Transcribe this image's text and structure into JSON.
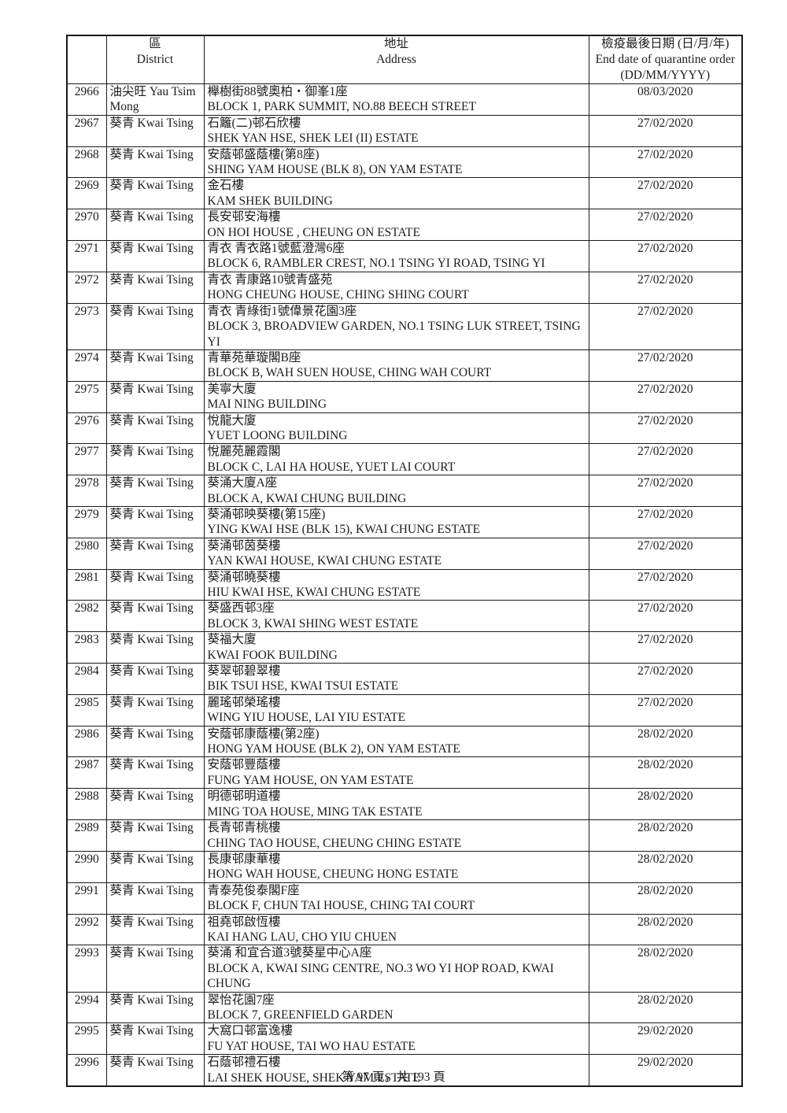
{
  "table": {
    "header": {
      "id_label": "",
      "district_zh": "區",
      "district_en": "District",
      "address_zh": "地址",
      "address_en": "Address",
      "date_zh": "檢疫最後日期 (日/月/年)",
      "date_en": "End date of quarantine order",
      "date_format": "(DD/MM/YYYY)"
    },
    "rows": [
      {
        "id": "2966",
        "district": "油尖旺 Yau Tsim Mong",
        "address_zh": "櫸樹街88號奧柏・御峯1座",
        "address_en": "BLOCK 1, PARK SUMMIT, NO.88 BEECH STREET",
        "date": "08/03/2020"
      },
      {
        "id": "2967",
        "district": "葵青 Kwai Tsing",
        "address_zh": "石籬(二)邨石欣樓",
        "address_en": "SHEK YAN HSE, SHEK LEI (II) ESTATE",
        "date": "27/02/2020"
      },
      {
        "id": "2968",
        "district": "葵青 Kwai Tsing",
        "address_zh": "安蔭邨盛蔭樓(第8座)",
        "address_en": "SHING YAM HOUSE (BLK 8), ON YAM ESTATE",
        "date": "27/02/2020"
      },
      {
        "id": "2969",
        "district": "葵青 Kwai Tsing",
        "address_zh": "金石樓",
        "address_en": "KAM SHEK BUILDING",
        "date": "27/02/2020"
      },
      {
        "id": "2970",
        "district": "葵青 Kwai Tsing",
        "address_zh": "長安邨安海樓",
        "address_en": "ON HOI HOUSE , CHEUNG ON ESTATE",
        "date": "27/02/2020"
      },
      {
        "id": "2971",
        "district": "葵青 Kwai Tsing",
        "address_zh": "青衣 青衣路1號藍澄灣6座",
        "address_en": "BLOCK 6, RAMBLER CREST, NO.1 TSING YI ROAD, TSING YI",
        "date": "27/02/2020"
      },
      {
        "id": "2972",
        "district": "葵青 Kwai Tsing",
        "address_zh": "青衣 青康路10號青盛苑",
        "address_en": "HONG CHEUNG HOUSE, CHING SHING COURT",
        "date": "27/02/2020"
      },
      {
        "id": "2973",
        "district": "葵青 Kwai Tsing",
        "address_zh": "青衣 青綠街1號偉景花園3座",
        "address_en": "BLOCK 3, BROADVIEW GARDEN, NO.1 TSING LUK STREET, TSING YI",
        "date": "27/02/2020"
      },
      {
        "id": "2974",
        "district": "葵青 Kwai Tsing",
        "address_zh": "青華苑華璇閣B座",
        "address_en": "BLOCK B, WAH SUEN HOUSE, CHING WAH COURT",
        "date": "27/02/2020"
      },
      {
        "id": "2975",
        "district": "葵青 Kwai Tsing",
        "address_zh": "美寧大廈",
        "address_en": "MAI NING BUILDING",
        "date": "27/02/2020"
      },
      {
        "id": "2976",
        "district": "葵青 Kwai Tsing",
        "address_zh": "悅龍大廈",
        "address_en": "YUET LOONG BUILDING",
        "date": "27/02/2020"
      },
      {
        "id": "2977",
        "district": "葵青 Kwai Tsing",
        "address_zh": "悅麗苑麗霞閣",
        "address_en": "BLOCK C, LAI HA HOUSE, YUET LAI COURT",
        "date": "27/02/2020"
      },
      {
        "id": "2978",
        "district": "葵青 Kwai Tsing",
        "address_zh": "葵涌大廈A座",
        "address_en": "BLOCK A, KWAI CHUNG BUILDING",
        "date": "27/02/2020"
      },
      {
        "id": "2979",
        "district": "葵青 Kwai Tsing",
        "address_zh": "葵涌邨映葵樓(第15座)",
        "address_en": "YING KWAI HSE (BLK 15), KWAI CHUNG ESTATE",
        "date": "27/02/2020"
      },
      {
        "id": "2980",
        "district": "葵青 Kwai Tsing",
        "address_zh": "葵涌邨茵葵樓",
        "address_en": "YAN KWAI HOUSE, KWAI CHUNG ESTATE",
        "date": "27/02/2020"
      },
      {
        "id": "2981",
        "district": "葵青 Kwai Tsing",
        "address_zh": "葵涌邨曉葵樓",
        "address_en": "HIU KWAI HSE, KWAI CHUNG ESTATE",
        "date": "27/02/2020"
      },
      {
        "id": "2982",
        "district": "葵青 Kwai Tsing",
        "address_zh": "葵盛西邨3座",
        "address_en": "BLOCK 3, KWAI SHING WEST ESTATE",
        "date": "27/02/2020"
      },
      {
        "id": "2983",
        "district": "葵青 Kwai Tsing",
        "address_zh": "葵福大廈",
        "address_en": "KWAI FOOK BUILDING",
        "date": "27/02/2020"
      },
      {
        "id": "2984",
        "district": "葵青 Kwai Tsing",
        "address_zh": "葵翠邨碧翠樓",
        "address_en": "BIK TSUI HSE, KWAI TSUI ESTATE",
        "date": "27/02/2020"
      },
      {
        "id": "2985",
        "district": "葵青 Kwai Tsing",
        "address_zh": "麗瑤邨榮瑤樓",
        "address_en": "WING YIU HOUSE, LAI YIU ESTATE",
        "date": "27/02/2020"
      },
      {
        "id": "2986",
        "district": "葵青 Kwai Tsing",
        "address_zh": "安蔭邨康蔭樓(第2座)",
        "address_en": "HONG YAM HOUSE (BLK 2), ON YAM ESTATE",
        "date": "28/02/2020"
      },
      {
        "id": "2987",
        "district": "葵青 Kwai Tsing",
        "address_zh": "安蔭邨豐蔭樓",
        "address_en": "FUNG YAM HOUSE, ON YAM ESTATE",
        "date": "28/02/2020"
      },
      {
        "id": "2988",
        "district": "葵青 Kwai Tsing",
        "address_zh": "明德邨明道樓",
        "address_en": "MING TOA HOUSE, MING TAK ESTATE",
        "date": "28/02/2020"
      },
      {
        "id": "2989",
        "district": "葵青 Kwai Tsing",
        "address_zh": "長青邨青桃樓",
        "address_en": "CHING TAO HOUSE, CHEUNG CHING ESTATE",
        "date": "28/02/2020"
      },
      {
        "id": "2990",
        "district": "葵青 Kwai Tsing",
        "address_zh": "長康邨康華樓",
        "address_en": "HONG WAH HOUSE, CHEUNG HONG ESTATE",
        "date": "28/02/2020"
      },
      {
        "id": "2991",
        "district": "葵青 Kwai Tsing",
        "address_zh": "青泰苑俊泰閣F座",
        "address_en": "BLOCK F, CHUN TAI HOUSE, CHING TAI COURT",
        "date": "28/02/2020"
      },
      {
        "id": "2992",
        "district": "葵青 Kwai Tsing",
        "address_zh": "祖堯邨啟恆樓",
        "address_en": "KAI HANG LAU, CHO YIU CHUEN",
        "date": "28/02/2020"
      },
      {
        "id": "2993",
        "district": "葵青 Kwai Tsing",
        "address_zh": "葵涌 和宜合道3號葵星中心A座",
        "address_en": "BLOCK A, KWAI SING CENTRE, NO.3 WO YI HOP ROAD, KWAI CHUNG",
        "date": "28/02/2020"
      },
      {
        "id": "2994",
        "district": "葵青 Kwai Tsing",
        "address_zh": "翠怡花園7座",
        "address_en": "BLOCK 7, GREENFIELD GARDEN",
        "date": "28/02/2020"
      },
      {
        "id": "2995",
        "district": "葵青 Kwai Tsing",
        "address_zh": "大窩口邨富逸樓",
        "address_en": "FU YAT HOUSE, TAI WO HAU ESTATE",
        "date": "29/02/2020"
      },
      {
        "id": "2996",
        "district": "葵青 Kwai Tsing",
        "address_zh": "石蔭邨禮石樓",
        "address_en": "LAI SHEK HOUSE, SHEK YAM ESTATE",
        "date": "29/02/2020"
      }
    ]
  },
  "footer": {
    "page_indicator": "第 97 頁，共 193 頁"
  }
}
